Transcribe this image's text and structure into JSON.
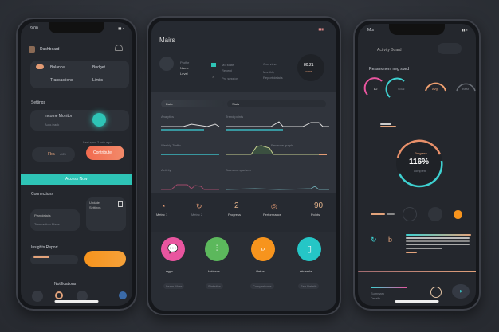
{
  "left_phone": {
    "status_time": "9:00",
    "header_title": "Dashboard",
    "row1": [
      "Balance",
      "Budget"
    ],
    "row2": [
      "Transactions",
      "Limits"
    ],
    "section_title": "Settings",
    "toggle_label": "Income Monitor",
    "toggle_sub": "Auto-track",
    "caption": "Last sync 2 min ago",
    "chip_value": "Fba",
    "chip_unit": "dt25",
    "action_button": "Contribute",
    "banner_button": "Access Now",
    "section2_title": "Connections",
    "card_a": [
      "Plan details",
      "Transaction Plans"
    ],
    "card_b": [
      "Update",
      "Settings"
    ],
    "section3_title": "Insights Report",
    "footer_title": "Notifications",
    "accent": "#2ec4b6",
    "orange": "#f58a2e",
    "coral": "#f26b4f"
  },
  "tablet": {
    "title": "Mairs",
    "profile_lines": [
      "Profile",
      "Name",
      "Level"
    ],
    "middle_lines": [
      "Mo state",
      "Recent",
      "Pro session"
    ],
    "right_lines": [
      "Overview",
      "Monthly",
      "Report details"
    ],
    "badge_value": "80:21",
    "badge_sub": "score",
    "tabs": [
      "Data",
      "Stats"
    ],
    "chart_labels": [
      "Analytics",
      "Trend points",
      "Weekly Traffic",
      "Activity",
      "Sales comparison",
      "Revenue graph"
    ],
    "stats": [
      {
        "icon": "gauge-icon",
        "label": "Metric 1"
      },
      {
        "icon": "refresh-icon",
        "label": "Metric 2"
      },
      {
        "value": "2",
        "label": "Progress"
      },
      {
        "icon": "target-icon",
        "label": "Performance"
      },
      {
        "value": "90",
        "label": "Points"
      }
    ],
    "features": [
      {
        "title": "Agge",
        "icon": "chat-icon",
        "color": "#e9559f",
        "button": "Learn More"
      },
      {
        "title": "Lubbers",
        "icon": "chart-icon",
        "color": "#5cb85c",
        "button": "Statistics"
      },
      {
        "title": "Gains",
        "icon": "search-icon",
        "color": "#f7941d",
        "button": "Comparisons"
      },
      {
        "title": "Aleasols",
        "icon": "document-icon",
        "color": "#25c6c6",
        "button": "See Details"
      }
    ]
  },
  "right_phone": {
    "status_time": "Mts",
    "header_title": "Activity Board",
    "section_title": "Ressmonent neg sued",
    "gauges": [
      {
        "label": "L2",
        "color": "#e9559f"
      },
      {
        "label": "Goal",
        "color": "#3ed1d1"
      },
      {
        "label": "Avg",
        "color": "#f0a070"
      },
      {
        "label": "Best",
        "color": "#6b7078"
      }
    ],
    "big_gauge_label": "Progress",
    "big_gauge_value": "116%",
    "big_gauge_sub": "complete",
    "footer_label": "Summary",
    "footer_sub": "Details"
  }
}
